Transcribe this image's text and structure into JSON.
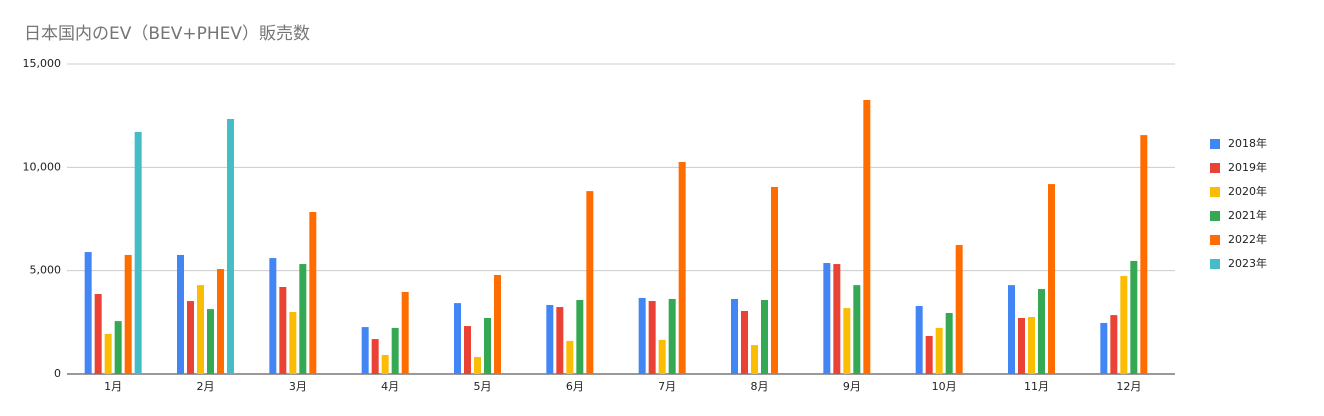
{
  "chart_data": {
    "type": "bar",
    "title": "日本国内のEV（BEV+PHEV）販売数",
    "categories": [
      "1月",
      "2月",
      "3月",
      "4月",
      "5月",
      "6月",
      "7月",
      "8月",
      "9月",
      "10月",
      "11月",
      "12月"
    ],
    "series": [
      {
        "name": "2018年",
        "color": "#4285f4",
        "values": [
          5900,
          5760,
          5610,
          2270,
          3430,
          3340,
          3680,
          3630,
          5370,
          3290,
          4300,
          2470
        ]
      },
      {
        "name": "2019年",
        "color": "#ea4335",
        "values": [
          3870,
          3530,
          4210,
          1690,
          2320,
          3240,
          3530,
          3050,
          5320,
          1840,
          2710,
          2850
        ]
      },
      {
        "name": "2020年",
        "color": "#fbbc04",
        "values": [
          1940,
          4300,
          3000,
          920,
          820,
          1600,
          1650,
          1400,
          3190,
          2230,
          2760,
          4740
        ]
      },
      {
        "name": "2021年",
        "color": "#34a853",
        "values": [
          2560,
          3140,
          5320,
          2230,
          2710,
          3580,
          3630,
          3580,
          4300,
          2950,
          4110,
          5470
        ]
      },
      {
        "name": "2022年",
        "color": "#ff6d01",
        "values": [
          5760,
          5080,
          7840,
          3970,
          4790,
          8850,
          10260,
          9050,
          13260,
          6240,
          9190,
          11560
        ]
      },
      {
        "name": "2023年",
        "color": "#46bdc6",
        "values": [
          11710,
          12340,
          null,
          null,
          null,
          null,
          null,
          null,
          null,
          null,
          null,
          null
        ]
      }
    ],
    "ylim": [
      0,
      15000
    ],
    "yticks": [
      0,
      {
        "value": 5000,
        "label": "5,000"
      },
      {
        "value": 10000,
        "label": "10,000"
      },
      {
        "value": 15000,
        "label": "15,000"
      }
    ],
    "grid": true,
    "legend": "right"
  }
}
